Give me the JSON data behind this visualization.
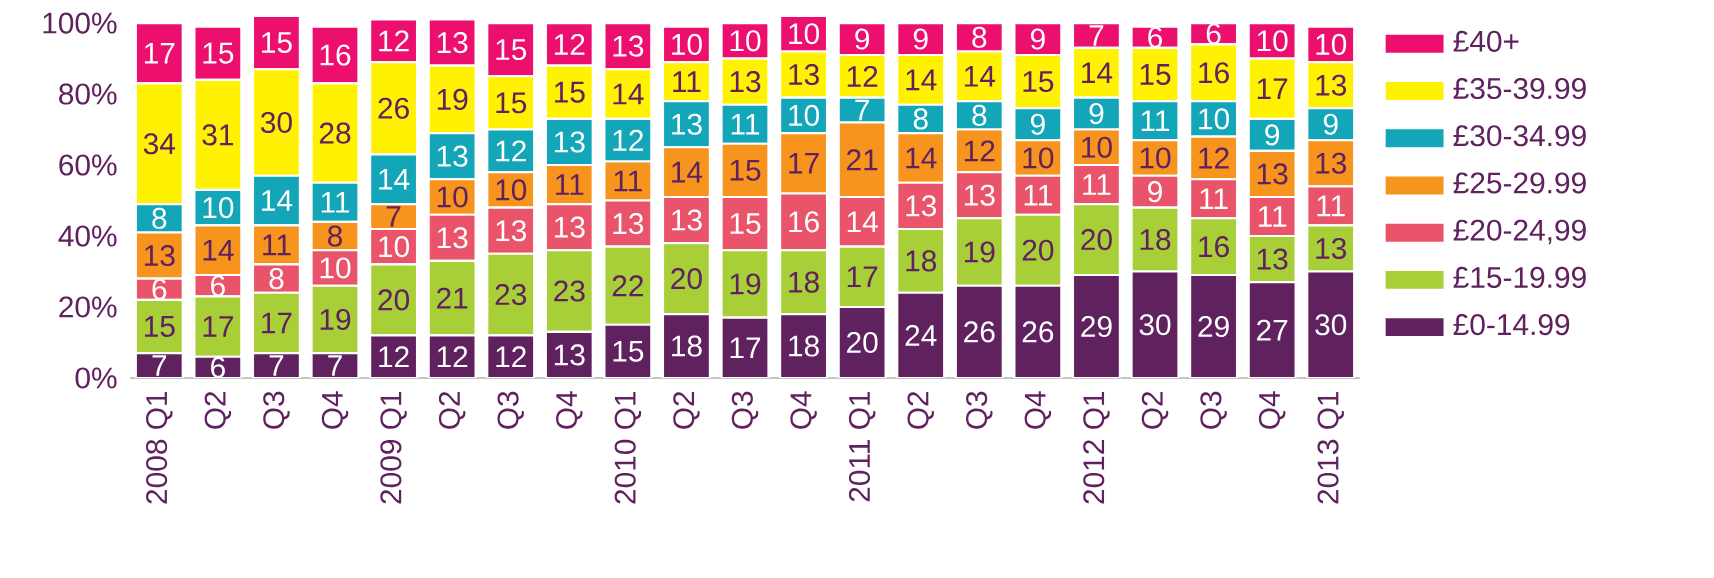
{
  "chart_data": {
    "type": "bar",
    "stacked": true,
    "legend": "right",
    "categories": [
      "2008 Q1",
      "Q2",
      "Q3",
      "Q4",
      "2009 Q1",
      "Q2",
      "Q3",
      "Q4",
      "2010 Q1",
      "Q2",
      "Q3",
      "Q4",
      "2011 Q1",
      "Q2",
      "Q3",
      "Q4",
      "2012 Q1",
      "Q2",
      "Q3",
      "Q4",
      "2013 Q1"
    ],
    "ylim": [
      0,
      102
    ],
    "yticks": [
      {
        "value": 0,
        "label": "0%"
      },
      {
        "value": 20,
        "label": "20%"
      },
      {
        "value": 40,
        "label": "40%"
      },
      {
        "value": 60,
        "label": "60%"
      },
      {
        "value": 80,
        "label": "80%"
      },
      {
        "value": 100,
        "label": "100%"
      }
    ],
    "series": [
      {
        "name": "£0-14.99",
        "color": "#60215f",
        "values": [
          7,
          6,
          7,
          7,
          12,
          12,
          12,
          13,
          15,
          18,
          17,
          18,
          20,
          24,
          26,
          26,
          29,
          30,
          29,
          27,
          30
        ],
        "value_labels": [
          "7",
          "6",
          "7",
          "7",
          "12",
          "12",
          "12",
          "13",
          "15",
          "18",
          "17",
          "18",
          "20",
          "24",
          "26",
          "26",
          "29",
          "30",
          "29",
          "27",
          "30"
        ]
      },
      {
        "name": "£15-19.99",
        "color": "#a8cf38",
        "values": [
          15,
          17,
          17,
          19,
          20,
          21,
          23,
          23,
          22,
          20,
          19,
          18,
          17,
          18,
          19,
          20,
          20,
          18,
          16,
          13,
          13
        ],
        "value_labels": [
          "15",
          "17",
          "17",
          "19",
          "20",
          "21",
          "23",
          "23",
          "22",
          "20",
          "19",
          "18",
          "17",
          "18",
          "19",
          "20",
          "20",
          "18",
          "16",
          "13",
          "13"
        ]
      },
      {
        "name": "£20-24,99",
        "color": "#e9546b",
        "values": [
          6,
          6,
          8,
          10,
          10,
          13,
          13,
          13,
          13,
          13,
          15,
          16,
          14,
          13,
          13,
          11,
          11,
          9,
          11,
          11,
          11
        ],
        "value_labels": [
          "6",
          "6",
          "8",
          "10",
          "10",
          "13",
          "13",
          "13",
          "13",
          "13",
          "15",
          "16",
          "14",
          "13",
          "13",
          "11",
          "11",
          "9",
          "11",
          "11",
          "11"
        ]
      },
      {
        "name": "£25-29.99",
        "color": "#f7941d",
        "values": [
          13,
          14,
          11,
          8,
          7,
          10,
          10,
          11,
          11,
          14,
          15,
          17,
          21,
          14,
          12,
          10,
          10,
          10,
          12,
          13,
          13
        ],
        "value_labels": [
          "13",
          "14",
          "11",
          "8",
          "7",
          "10",
          "10",
          "11",
          "11",
          "14",
          "15",
          "17",
          "21",
          "14",
          "12",
          "10",
          "10",
          "10",
          "12",
          "13",
          "13"
        ]
      },
      {
        "name": "£30-34.99",
        "color": "#13a5b8",
        "values": [
          8,
          10,
          14,
          11,
          14,
          13,
          12,
          13,
          12,
          13,
          11,
          10,
          7,
          8,
          8,
          9,
          9,
          11,
          10,
          9,
          9
        ],
        "value_labels": [
          "8",
          "10",
          "14",
          "11",
          "14",
          "13",
          "12",
          "13",
          "12",
          "13",
          "11",
          "10",
          "7",
          "8",
          "8",
          "9",
          "9",
          "11",
          "10",
          "9",
          "9"
        ]
      },
      {
        "name": "£35-39.99",
        "color": "#fff200",
        "values": [
          34,
          31,
          30,
          28,
          26,
          19,
          15,
          15,
          14,
          11,
          13,
          13,
          12,
          14,
          14,
          15,
          14,
          15,
          16,
          17,
          13
        ],
        "value_labels": [
          "34",
          "31",
          "30",
          "28",
          "26",
          "19",
          "15",
          "15",
          "14",
          "11",
          "13",
          "13",
          "12",
          "14",
          "14",
          "15",
          "14",
          "15",
          "16",
          "17",
          "13"
        ]
      },
      {
        "name": "£40+",
        "color": "#ec0f6d",
        "values": [
          17,
          15,
          15,
          16,
          12,
          13,
          15,
          12,
          13,
          10,
          10,
          10,
          9,
          9,
          8,
          9,
          7,
          6,
          6,
          10,
          10
        ],
        "value_labels": [
          "17",
          "15",
          "15",
          "16",
          "12",
          "13",
          "15",
          "12",
          "13",
          "10",
          "10",
          "10",
          "9",
          "9",
          "8",
          "9",
          "7",
          "6",
          "6",
          "10",
          "10"
        ]
      }
    ]
  }
}
